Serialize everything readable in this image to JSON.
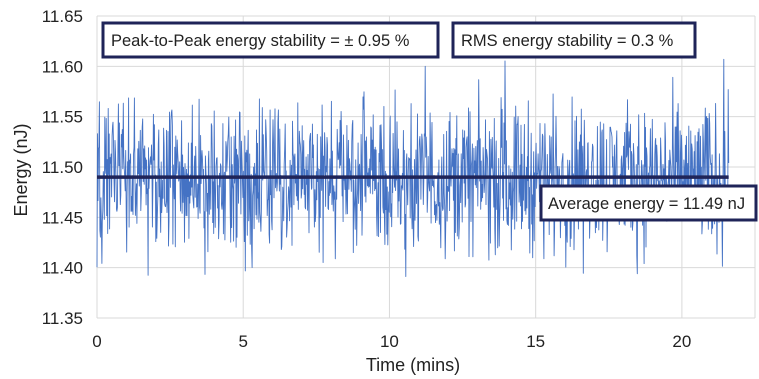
{
  "chart_data": {
    "type": "line",
    "title": "",
    "xlabel": "Time (mins)",
    "ylabel": "Energy (nJ)",
    "xlim": [
      0,
      22.5
    ],
    "ylim": [
      11.35,
      11.65
    ],
    "x_ticks": [
      "0",
      "5",
      "10",
      "15",
      "20"
    ],
    "y_ticks": [
      "11.35",
      "11.40",
      "11.45",
      "11.50",
      "11.55",
      "11.60",
      "11.65"
    ],
    "grid": true,
    "series": [
      {
        "name": "",
        "color": "#4472c4",
        "x_range": [
          0,
          21.6
        ],
        "sample_count": 1300,
        "mean": 11.49,
        "typical_min": 11.42,
        "typical_max": 11.56,
        "min": 11.39,
        "max": 11.61
      }
    ],
    "reference_line": {
      "value": 11.49,
      "x_range": [
        0,
        21.6
      ],
      "color": "#1f2458"
    },
    "annotations": [
      {
        "id": "p2p",
        "text": "Peak-to-Peak energy stability = ± 0.95 %"
      },
      {
        "id": "rms",
        "text": "RMS energy stability = 0.3 %"
      },
      {
        "id": "avg",
        "text": "Average energy = 11.49 nJ"
      }
    ],
    "colors": {
      "grid": "#d9d9d9",
      "frame": "#1f2458"
    }
  }
}
